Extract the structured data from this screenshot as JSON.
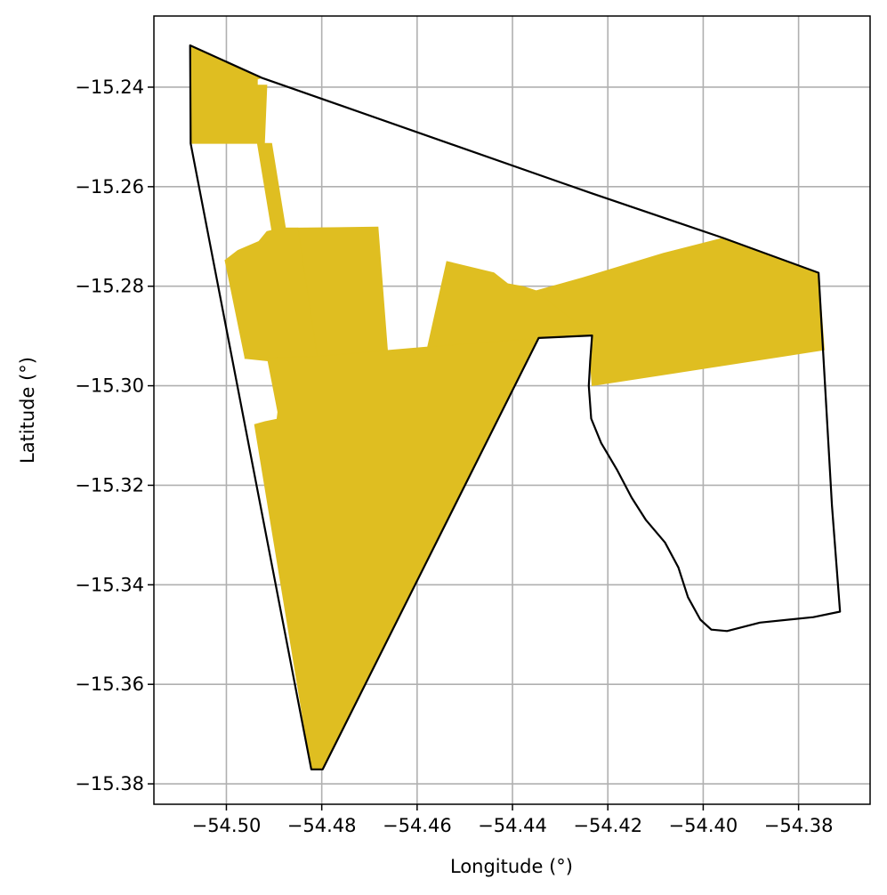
{
  "axes": {
    "xlabel": "Longitude (°)",
    "ylabel": "Latitude (°)",
    "xlim": [
      -54.5152,
      -54.365
    ],
    "ylim": [
      -15.3841,
      -15.2257
    ],
    "grid": true
  },
  "x_ticks": [
    {
      "value": -54.5,
      "label": "−54.50"
    },
    {
      "value": -54.48,
      "label": "−54.48"
    },
    {
      "value": -54.46,
      "label": "−54.46"
    },
    {
      "value": -54.44,
      "label": "−54.44"
    },
    {
      "value": -54.42,
      "label": "−54.42"
    },
    {
      "value": -54.4,
      "label": "−54.40"
    },
    {
      "value": -54.38,
      "label": "−54.38"
    }
  ],
  "y_ticks": [
    {
      "value": -15.24,
      "label": "−15.24"
    },
    {
      "value": -15.26,
      "label": "−15.26"
    },
    {
      "value": -15.28,
      "label": "−15.28"
    },
    {
      "value": -15.3,
      "label": "−15.30"
    },
    {
      "value": -15.32,
      "label": "−15.32"
    },
    {
      "value": -15.34,
      "label": "−15.34"
    },
    {
      "value": -15.36,
      "label": "−15.36"
    },
    {
      "value": -15.38,
      "label": "−15.38"
    }
  ],
  "colors": {
    "fill": "#DFBE21",
    "boundary": "#000000",
    "grid": "#b0b0b0",
    "axes": "#000000"
  },
  "map_data": {
    "boundary": [
      [
        -54.5076,
        -15.2316
      ],
      [
        -54.4926,
        -15.2381
      ],
      [
        -54.4235,
        -15.2613
      ],
      [
        -54.3958,
        -15.2703
      ],
      [
        -54.3758,
        -15.2773
      ],
      [
        -54.373,
        -15.324
      ],
      [
        -54.3713,
        -15.3454
      ],
      [
        -54.3769,
        -15.3465
      ],
      [
        -54.3881,
        -15.3476
      ],
      [
        -54.395,
        -15.3493
      ],
      [
        -54.3983,
        -15.349
      ],
      [
        -54.4006,
        -15.347
      ],
      [
        -54.4032,
        -15.3425
      ],
      [
        -54.4052,
        -15.3365
      ],
      [
        -54.408,
        -15.3315
      ],
      [
        -54.412,
        -15.327
      ],
      [
        -54.415,
        -15.3225
      ],
      [
        -54.418,
        -15.317
      ],
      [
        -54.4214,
        -15.3115
      ],
      [
        -54.4235,
        -15.3066
      ],
      [
        -54.424,
        -15.3
      ],
      [
        -54.4237,
        -15.295
      ],
      [
        -54.4233,
        -15.2899
      ],
      [
        -54.4345,
        -15.2904
      ],
      [
        -54.4798,
        -15.3771
      ],
      [
        -54.4822,
        -15.3771
      ],
      [
        -54.5075,
        -15.2513
      ]
    ],
    "regions": [
      [
        [
          -54.5076,
          -15.2316
        ],
        [
          -54.4926,
          -15.2381
        ],
        [
          -54.4935,
          -15.2384
        ],
        [
          -54.4935,
          -15.2396
        ],
        [
          -54.4915,
          -15.2396
        ],
        [
          -54.492,
          -15.2513
        ],
        [
          -54.5075,
          -15.2513
        ]
      ],
      [
        [
          -54.4935,
          -15.2513
        ],
        [
          -54.4905,
          -15.2513
        ],
        [
          -54.4876,
          -15.2683
        ],
        [
          -54.485,
          -15.2683
        ],
        [
          -54.4809,
          -15.2941
        ],
        [
          -54.4857,
          -15.2941
        ],
        [
          -54.4885,
          -15.2802
        ]
      ],
      [
        [
          -54.4885,
          -15.2683
        ],
        [
          -54.4915,
          -15.269
        ],
        [
          -54.4932,
          -15.271
        ],
        [
          -54.4976,
          -15.2728
        ],
        [
          -54.5003,
          -15.2748
        ],
        [
          -54.4961,
          -15.2945
        ],
        [
          -54.4809,
          -15.2941
        ],
        [
          -54.485,
          -15.2683
        ]
      ],
      [
        [
          -54.485,
          -15.2683
        ],
        [
          -54.4682,
          -15.2681
        ],
        [
          -54.4662,
          -15.293
        ],
        [
          -54.4809,
          -15.2941
        ]
      ],
      [
        [
          -54.4962,
          -15.2945
        ],
        [
          -54.4809,
          -15.2941
        ],
        [
          -54.4578,
          -15.2922
        ],
        [
          -54.4345,
          -15.2904
        ],
        [
          -54.4798,
          -15.3771
        ],
        [
          -54.4822,
          -15.3771
        ],
        [
          -54.4941,
          -15.3078
        ],
        [
          -54.4919,
          -15.3072
        ],
        [
          -54.4894,
          -15.3067
        ],
        [
          -54.4892,
          -15.3053
        ],
        [
          -54.4913,
          -15.295
        ]
      ],
      [
        [
          -54.4578,
          -15.2922
        ],
        [
          -54.4538,
          -15.275
        ],
        [
          -54.4439,
          -15.2773
        ],
        [
          -54.441,
          -15.2795
        ],
        [
          -54.4376,
          -15.2801
        ],
        [
          -54.435,
          -15.2809
        ],
        [
          -54.4233,
          -15.2899
        ],
        [
          -54.4345,
          -15.2904
        ]
      ],
      [
        [
          -54.435,
          -15.2809
        ],
        [
          -54.4253,
          -15.2783
        ],
        [
          -54.4084,
          -15.2734
        ],
        [
          -54.3958,
          -15.2703
        ],
        [
          -54.3758,
          -15.2773
        ],
        [
          -54.3746,
          -15.2928
        ],
        [
          -54.4233,
          -15.3
        ],
        [
          -54.4237,
          -15.295
        ],
        [
          -54.4233,
          -15.2899
        ]
      ]
    ]
  }
}
